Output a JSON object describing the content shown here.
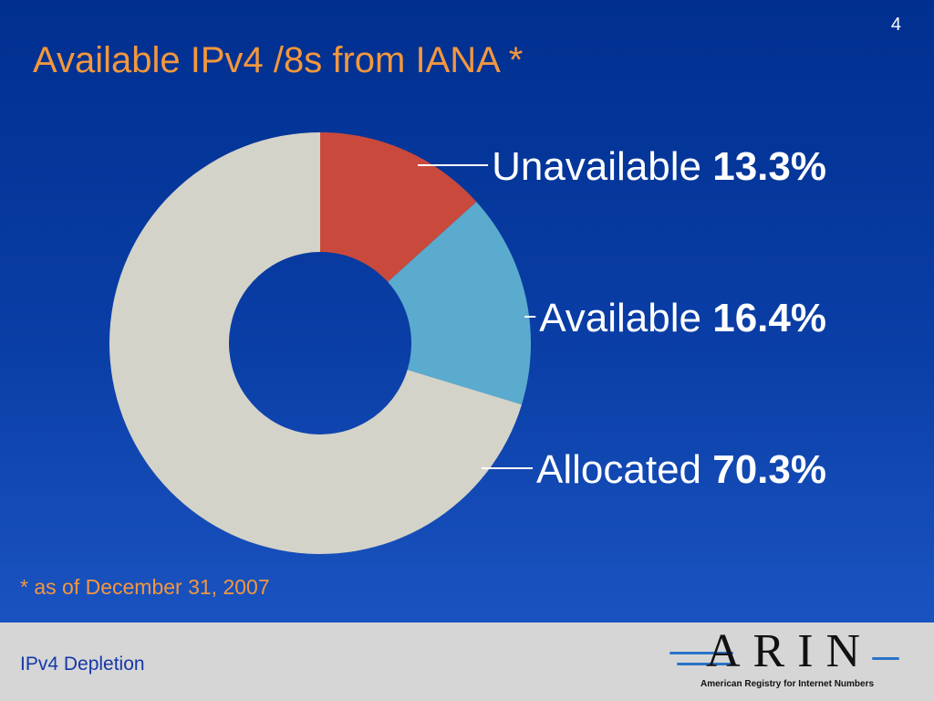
{
  "slide": {
    "page_number": "4",
    "footnote": "* as of December 31, 2007",
    "footer_text": "IPv4 Depletion"
  },
  "logo": {
    "name": "ARIN",
    "tagline": "American Registry for Internet Numbers",
    "accent_color": "#2b73c9"
  },
  "colors": {
    "background": "#0a3ea6",
    "title": "#f3973d",
    "footer_band": "#d6d6d6",
    "footer_text": "#1538a8"
  },
  "chart_data": {
    "type": "pie",
    "variant": "donut",
    "title": "Available IPv4 /8s from IANA *",
    "categories": [
      "Unavailable",
      "Available",
      "Allocated"
    ],
    "values": [
      13.3,
      16.4,
      70.3
    ],
    "value_labels": [
      "13.3%",
      "16.4%",
      "70.3%"
    ],
    "unit": "%",
    "colors": [
      "#c94a3c",
      "#5aabcd",
      "#d4d3c9"
    ],
    "legend": "right"
  }
}
